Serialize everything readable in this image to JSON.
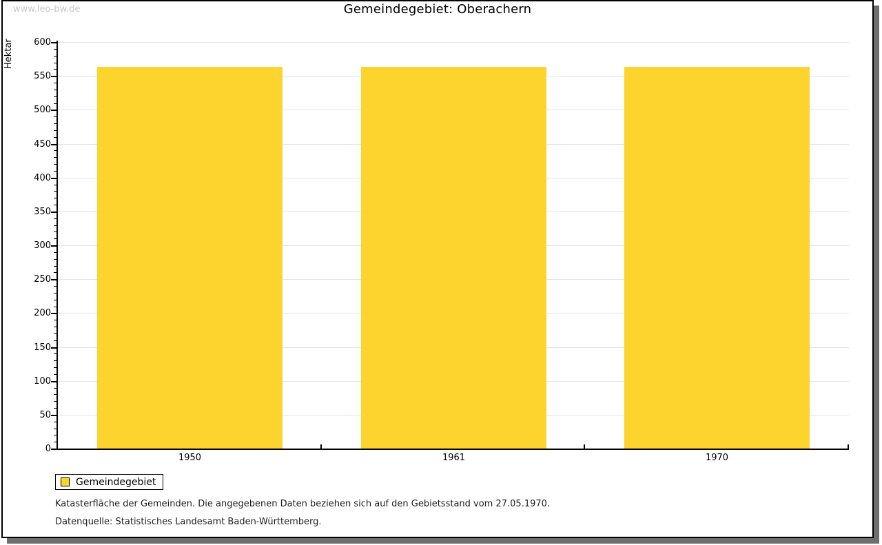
{
  "watermark": "www.leo-bw.de",
  "title": "Gemeindegebiet: Oberachern",
  "chart_data": {
    "type": "bar",
    "title": "Gemeindegebiet: Oberachern",
    "categories": [
      "1950",
      "1961",
      "1970"
    ],
    "series": [
      {
        "name": "Gemeindegebiet",
        "values": [
          563,
          563,
          563
        ],
        "color": "#FDD32D"
      }
    ],
    "xlabel": "",
    "ylabel": "Hektar",
    "ylim": [
      0,
      600
    ],
    "ytick_step": 50,
    "minor_tick_step": 10,
    "grid": true,
    "legend_position": "bottom-left"
  },
  "legend": {
    "label": "Gemeindegebiet",
    "swatch_color": "#FDD32D"
  },
  "footnotes": {
    "line1": "Katasterfläche der Gemeinden. Die angegebenen Daten beziehen sich auf den Gebietsstand vom 27.05.1970.",
    "line2": "Datenquelle: Statistisches Landesamt Baden-Württemberg."
  },
  "colors": {
    "bar": "#FDD32D",
    "grid": "#e3e3e3",
    "axis": "#000000",
    "watermark": "#c9c9c9",
    "shadow": "#6e6e6e",
    "background": "#ffffff"
  }
}
